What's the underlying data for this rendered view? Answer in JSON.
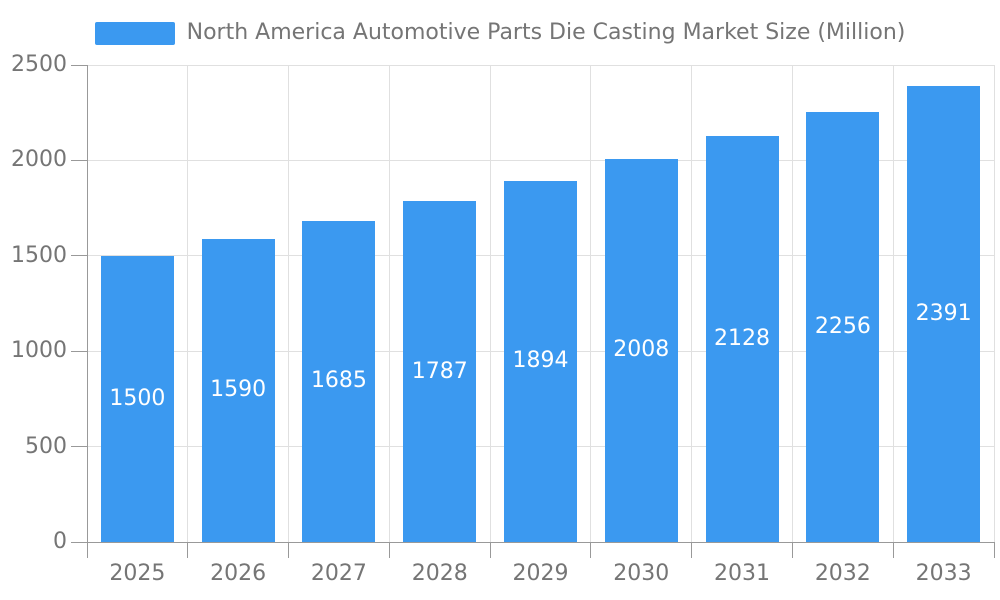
{
  "legend": {
    "label": "North America Automotive Parts Die Casting Market Size (Million)"
  },
  "chart_data": {
    "type": "bar",
    "title": "North America Automotive Parts Die Casting Market Size (Million)",
    "categories": [
      "2025",
      "2026",
      "2027",
      "2028",
      "2029",
      "2030",
      "2031",
      "2032",
      "2033"
    ],
    "values": [
      1500,
      1590,
      1685,
      1787,
      1894,
      2008,
      2128,
      2256,
      2391
    ],
    "xlabel": "",
    "ylabel": "",
    "ylim": [
      0,
      2500
    ],
    "yticks": [
      0,
      500,
      1000,
      1500,
      2000,
      2500
    ],
    "grid": true,
    "legend_position": "top",
    "value_labels": "inside-center",
    "colors": {
      "bar": "#3b99f0",
      "value_label": "#ffffff",
      "axis_text": "#757575",
      "gridline": "#e0e0e0",
      "axis_line": "#999999",
      "background": "#ffffff"
    }
  }
}
